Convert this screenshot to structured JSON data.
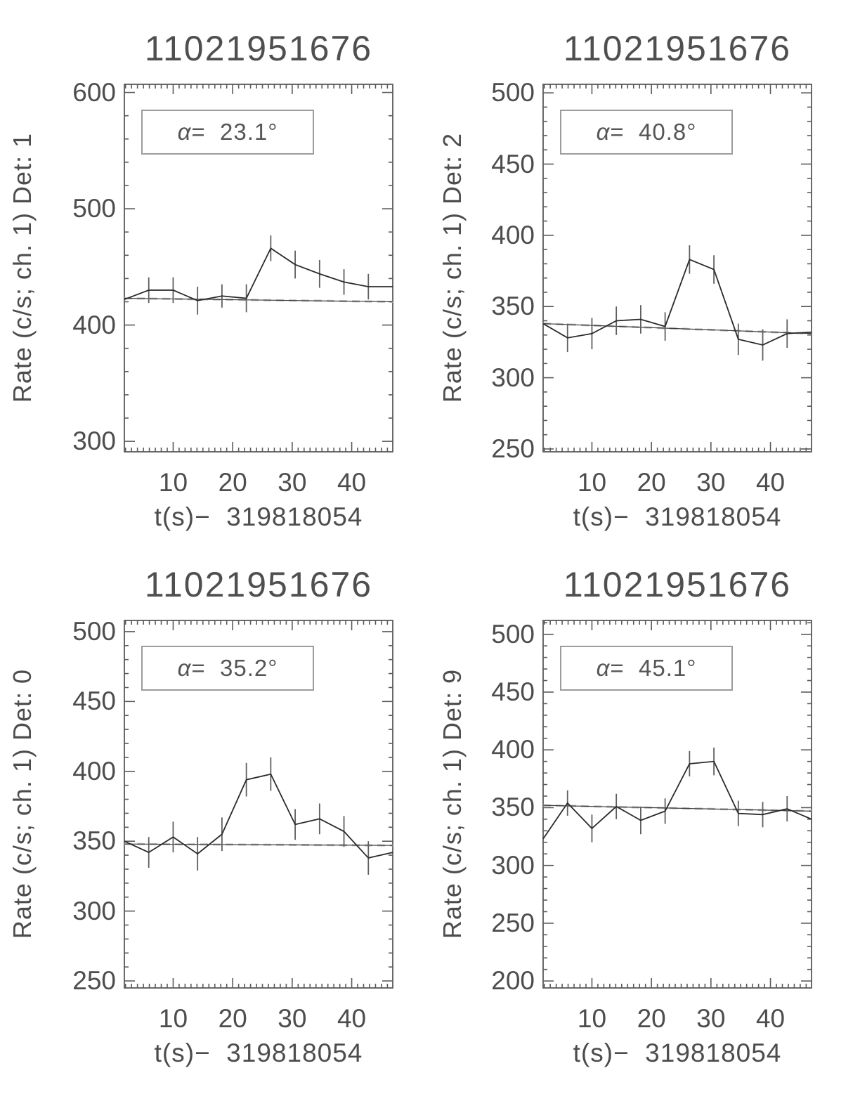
{
  "figure_background": "#ffffff",
  "colors": {
    "axis": "#5a5a5a",
    "data_line": "#2b2b2b",
    "error_bar": "#5f5f5f",
    "background_fit_dashed": "#bdbdbd",
    "background_fit_solid": "#3c3c3c",
    "text": "#4d4d4d",
    "annotation_border": "#9c9c9c"
  },
  "chart_data": [
    {
      "type": "line",
      "title": "11021951676",
      "ylabel": "Rate (c/s; ch. 1) Det: 1",
      "xlabel": "t(s)−  319818054",
      "annotation": "α=  23.1°",
      "alpha_deg": 23.1,
      "x": [
        1.8,
        5.9,
        10.0,
        14.1,
        18.2,
        22.3,
        26.4,
        30.5,
        34.6,
        38.7,
        42.8,
        46.9
      ],
      "y": [
        422,
        430,
        430,
        421,
        425,
        423,
        466,
        452,
        444,
        437,
        433,
        433
      ],
      "yerr": [
        null,
        11,
        11,
        12,
        10,
        12,
        11,
        12,
        12,
        11,
        11,
        null
      ],
      "background_fit": [
        423,
        420
      ],
      "x_range": [
        1.8,
        46.9
      ],
      "y_range": [
        291,
        607
      ],
      "x_ticks": [
        10,
        20,
        30,
        40
      ],
      "y_ticks": [
        300,
        400,
        500,
        600
      ],
      "x_minor_step": 1,
      "y_minor_step": 20,
      "grid": false,
      "legend": null
    },
    {
      "type": "line",
      "title": "11021951676",
      "ylabel": "Rate (c/s; ch. 1) Det: 2",
      "xlabel": "t(s)−  319818054",
      "annotation": "α=  40.8°",
      "alpha_deg": 40.8,
      "x": [
        1.8,
        5.9,
        10.0,
        14.1,
        18.2,
        22.3,
        26.4,
        30.5,
        34.6,
        38.7,
        42.8,
        46.9
      ],
      "y": [
        338,
        328,
        331,
        340,
        341,
        336,
        383,
        376,
        327,
        323,
        331,
        332
      ],
      "yerr": [
        null,
        10,
        11,
        10,
        10,
        10,
        10,
        10,
        11,
        11,
        10,
        null
      ],
      "background_fit": [
        338,
        331
      ],
      "x_range": [
        1.8,
        46.9
      ],
      "y_range": [
        248,
        506
      ],
      "x_ticks": [
        10,
        20,
        30,
        40
      ],
      "y_ticks": [
        250,
        300,
        350,
        400,
        450,
        500
      ],
      "x_minor_step": 1,
      "y_minor_step": 10,
      "grid": false,
      "legend": null
    },
    {
      "type": "line",
      "title": "11021951676",
      "ylabel": "Rate (c/s; ch. 1) Det: 0",
      "xlabel": "t(s)−  319818054",
      "annotation": "α=  35.2°",
      "alpha_deg": 35.2,
      "x": [
        1.8,
        5.9,
        10.0,
        14.1,
        18.2,
        22.3,
        26.4,
        30.5,
        34.6,
        38.7,
        42.8,
        46.9
      ],
      "y": [
        350,
        342,
        353,
        341,
        355,
        394,
        398,
        362,
        366,
        357,
        338,
        342
      ],
      "yerr": [
        null,
        11,
        11,
        12,
        12,
        12,
        12,
        11,
        11,
        11,
        12,
        null
      ],
      "background_fit": [
        348,
        347
      ],
      "x_range": [
        1.8,
        46.9
      ],
      "y_range": [
        245,
        508
      ],
      "x_ticks": [
        10,
        20,
        30,
        40
      ],
      "y_ticks": [
        250,
        300,
        350,
        400,
        450,
        500
      ],
      "x_minor_step": 1,
      "y_minor_step": 10,
      "grid": false,
      "legend": null
    },
    {
      "type": "line",
      "title": "11021951676",
      "ylabel": "Rate (c/s; ch. 1) Det: 9",
      "xlabel": "t(s)−  319818054",
      "annotation": "α=  45.1°",
      "alpha_deg": 45.1,
      "x": [
        1.8,
        5.9,
        10.0,
        14.1,
        18.2,
        22.3,
        26.4,
        30.5,
        34.6,
        38.7,
        42.8,
        46.9
      ],
      "y": [
        323,
        354,
        332,
        351,
        339,
        347,
        388,
        390,
        345,
        344,
        349,
        340
      ],
      "yerr": [
        null,
        11,
        12,
        11,
        12,
        11,
        11,
        12,
        11,
        11,
        11,
        null
      ],
      "background_fit": [
        352,
        347
      ],
      "x_range": [
        1.8,
        46.9
      ],
      "y_range": [
        194,
        512
      ],
      "x_ticks": [
        10,
        20,
        30,
        40
      ],
      "y_ticks": [
        200,
        250,
        300,
        350,
        400,
        450,
        500
      ],
      "x_minor_step": 1,
      "y_minor_step": 10,
      "grid": false,
      "legend": null
    }
  ]
}
